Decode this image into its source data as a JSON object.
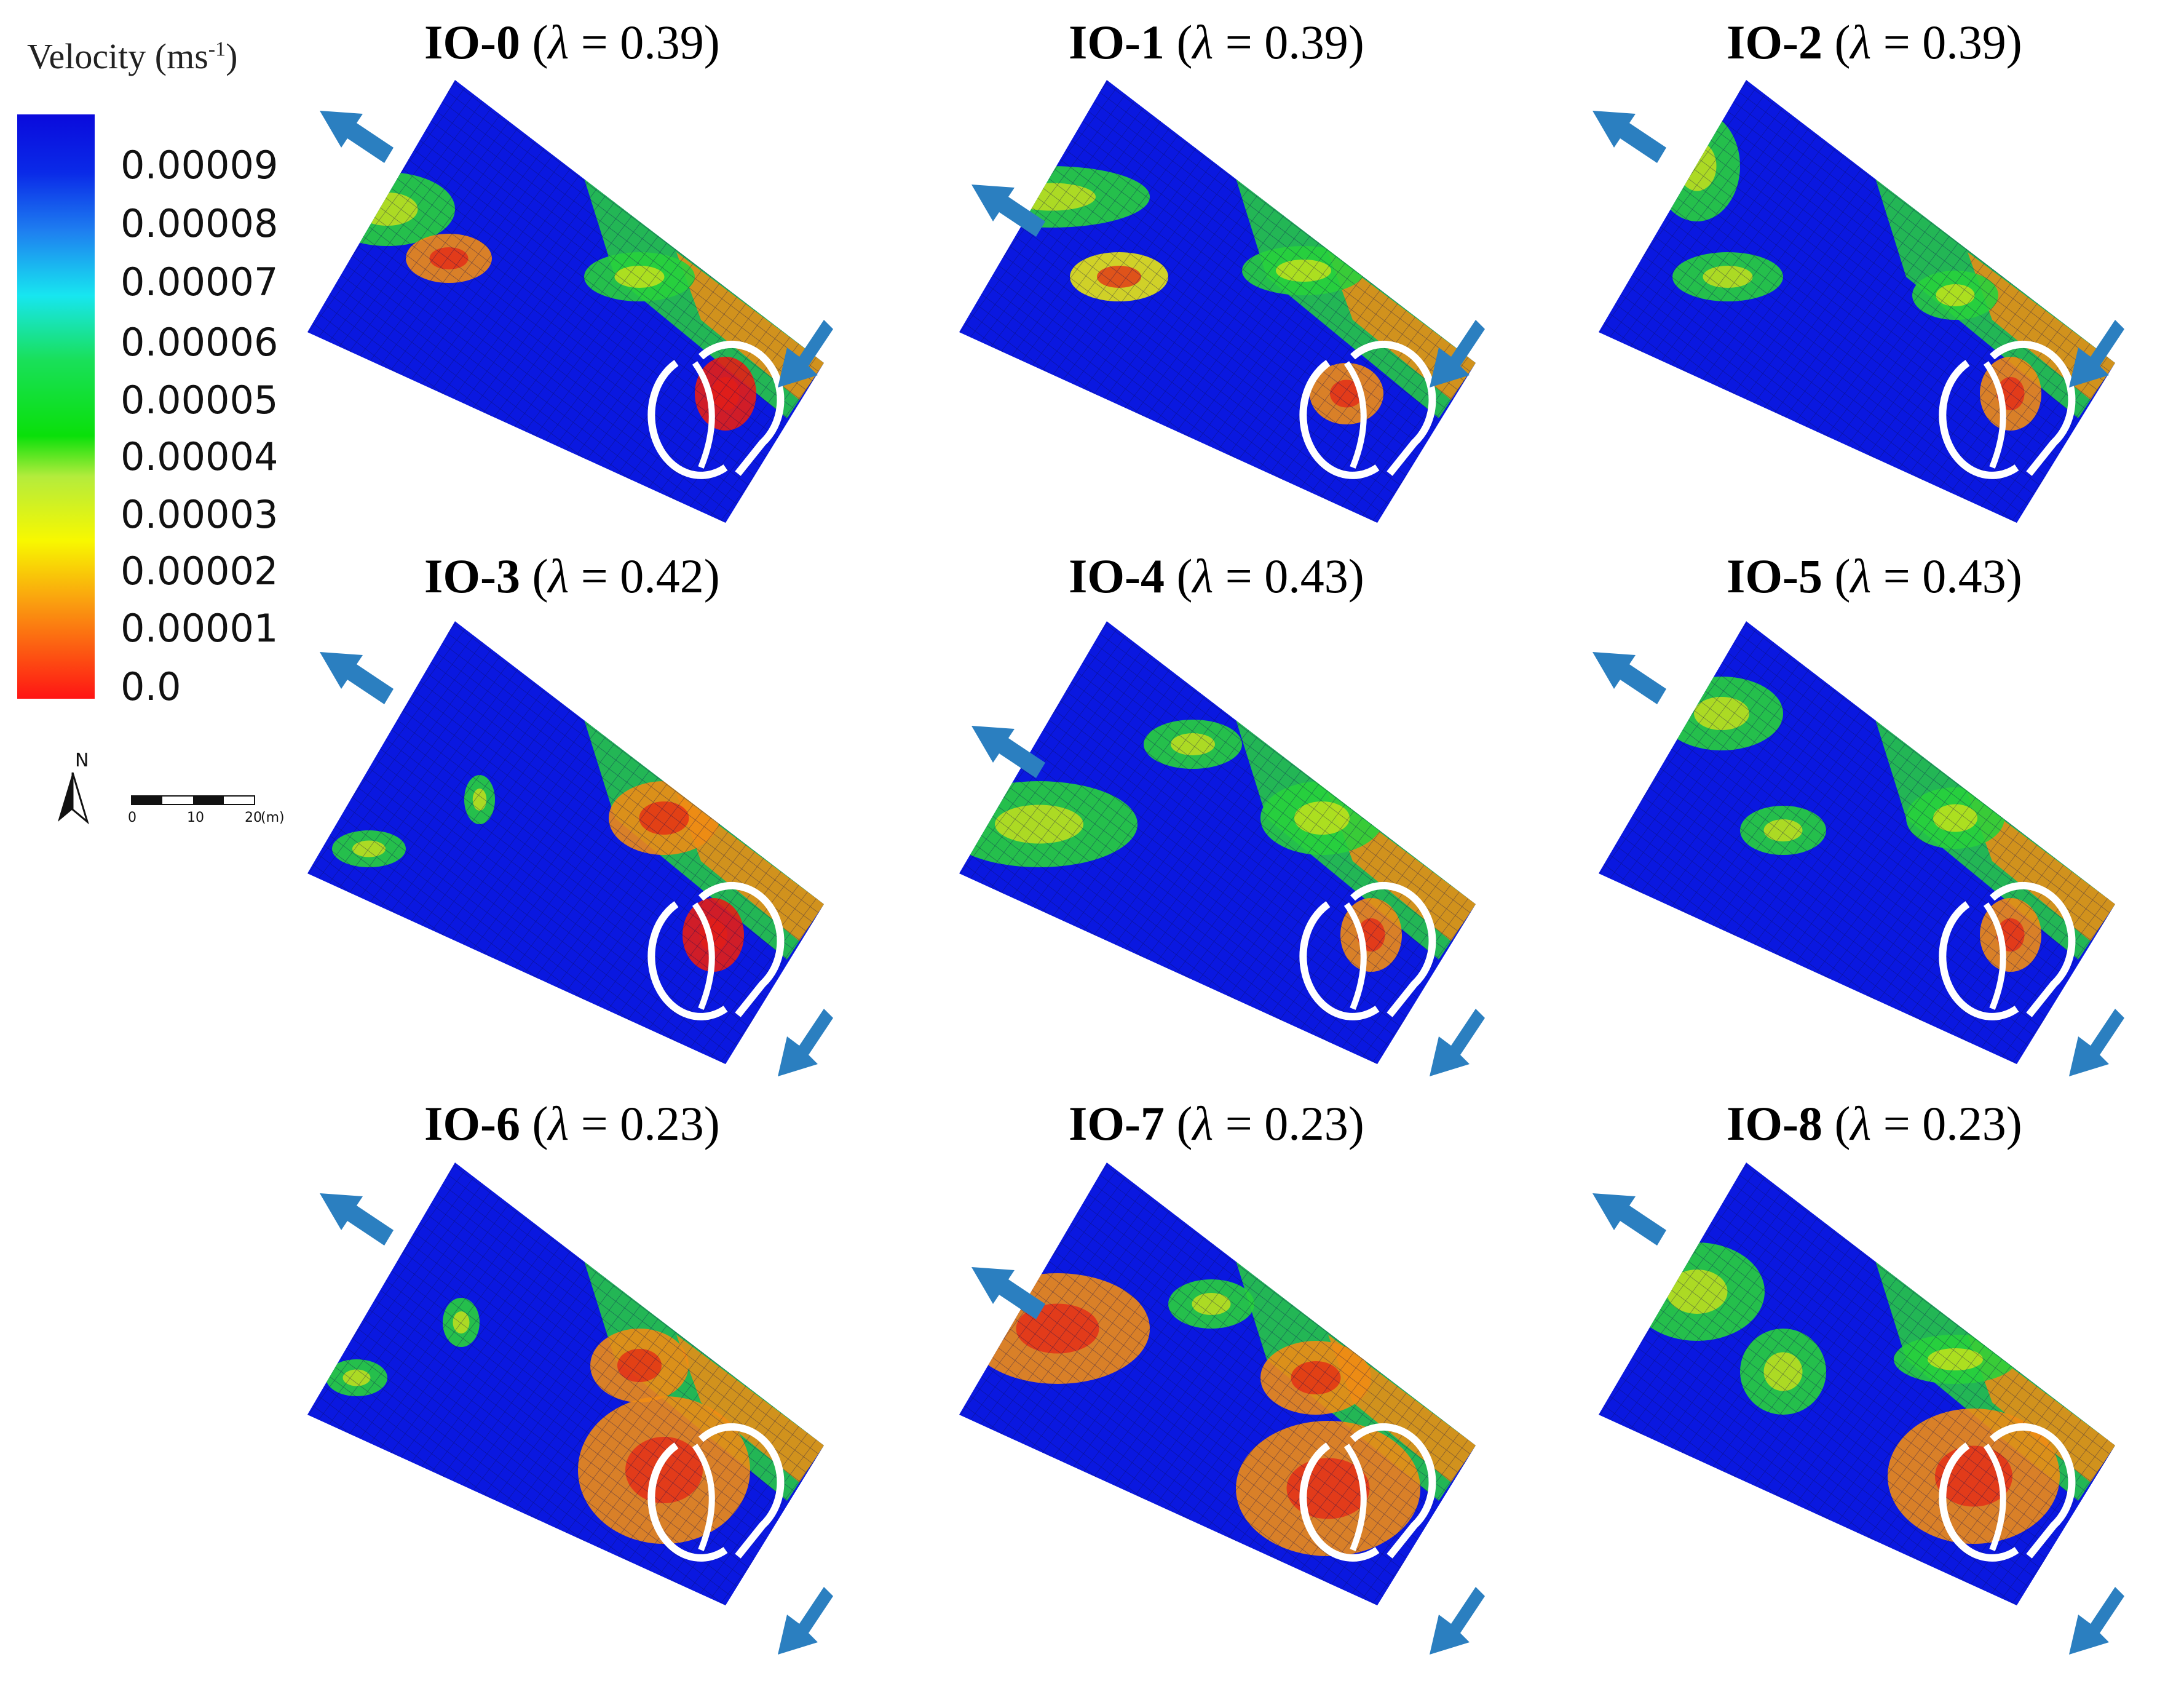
{
  "legend": {
    "title": "Velocity (ms",
    "title_sup": "-1",
    "title_close": ")",
    "ticks": [
      "0.00009",
      "0.00008",
      "0.00007",
      "0.00006",
      "0.00005",
      "0.00004",
      "0.00003",
      "0.00002",
      "0.00001",
      "0.0"
    ],
    "colors": [
      "#0a0adc",
      "#1e7ff0",
      "#17e6f0",
      "#19e05a",
      "#0ae00a",
      "#b4ec3c",
      "#f8f800",
      "#fa9a10",
      "#ff1414"
    ]
  },
  "north_label": "N",
  "scale": {
    "labels": [
      "0",
      "10",
      "20",
      "(m)"
    ]
  },
  "panels": [
    {
      "id": "IO-0",
      "lambda_prefix": " (",
      "lambda_symbol": "λ",
      "lambda_value": " = 0.39)"
    },
    {
      "id": "IO-1",
      "lambda_prefix": " (",
      "lambda_symbol": "λ",
      "lambda_value": " = 0.39)"
    },
    {
      "id": "IO-2",
      "lambda_prefix": " (",
      "lambda_symbol": "λ",
      "lambda_value": " = 0.39)"
    },
    {
      "id": "IO-3",
      "lambda_prefix": " (",
      "lambda_symbol": "λ",
      "lambda_value": " = 0.42)"
    },
    {
      "id": "IO-4",
      "lambda_prefix": " (",
      "lambda_symbol": "λ",
      "lambda_value": " = 0.43)"
    },
    {
      "id": "IO-5",
      "lambda_prefix": " (",
      "lambda_symbol": "λ",
      "lambda_value": " = 0.43)"
    },
    {
      "id": "IO-6",
      "lambda_prefix": " (",
      "lambda_symbol": "λ",
      "lambda_value": " = 0.23)"
    },
    {
      "id": "IO-7",
      "lambda_prefix": " (",
      "lambda_symbol": "λ",
      "lambda_value": " = 0.23)"
    },
    {
      "id": "IO-8",
      "lambda_prefix": " (",
      "lambda_symbol": "λ",
      "lambda_value": " = 0.23)"
    }
  ],
  "colors": {
    "blue": "#0a18e0",
    "arrow": "#2b7fc0",
    "green": "#28d23c",
    "yellow": "#e6e614",
    "orange": "#f08c14",
    "red": "#e61e14",
    "wall": "#ffffff"
  }
}
